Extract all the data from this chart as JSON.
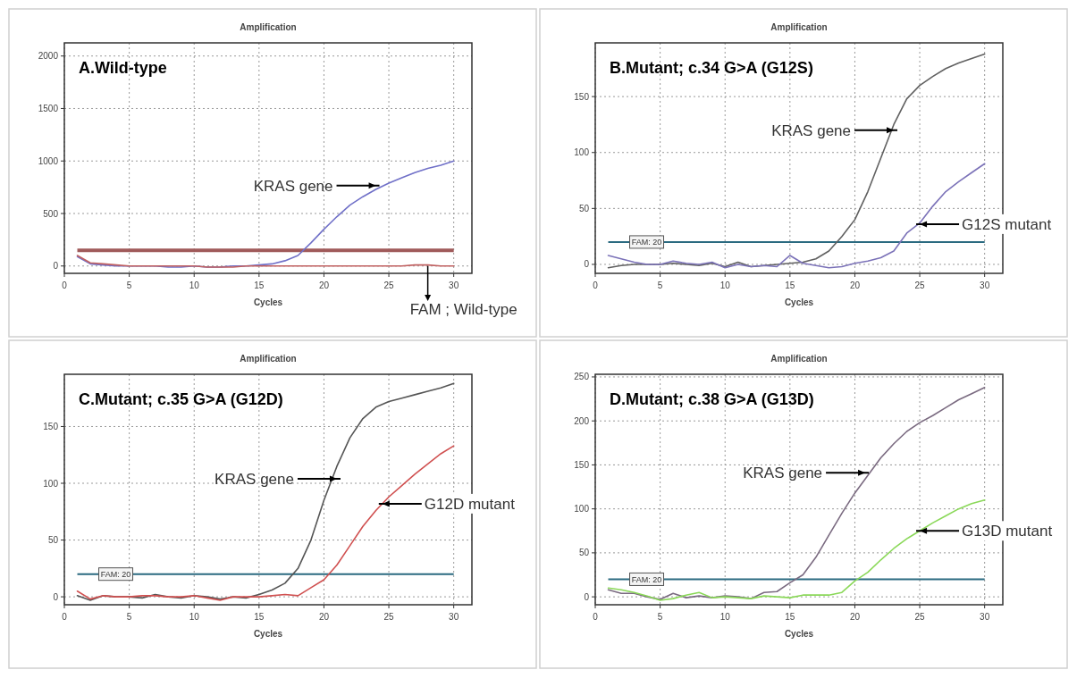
{
  "chart_data": [
    {
      "type": "line",
      "title": "Amplification",
      "subtitle": "A.Wild-type",
      "xlabel": "Cycles",
      "x": [
        1,
        2,
        3,
        4,
        5,
        6,
        7,
        8,
        9,
        10,
        11,
        12,
        13,
        14,
        15,
        16,
        17,
        18,
        19,
        20,
        21,
        22,
        23,
        24,
        25,
        26,
        27,
        28,
        29,
        30
      ],
      "xlim": [
        0,
        31.4
      ],
      "xticks": [
        0,
        5,
        10,
        15,
        20,
        25,
        30
      ],
      "ylim": [
        -70,
        2125
      ],
      "yticks": [
        0,
        500,
        1000,
        1500,
        2000
      ],
      "grid": true,
      "line_style": "solid",
      "series": [
        {
          "color": "#7070c8",
          "values": [
            90,
            20,
            10,
            0,
            0,
            0,
            0,
            -10,
            -10,
            0,
            -10,
            -10,
            0,
            0,
            10,
            20,
            50,
            100,
            220,
            350,
            470,
            580,
            660,
            730,
            790,
            840,
            890,
            930,
            960,
            1000
          ]
        },
        {
          "color": "#c06060",
          "values": [
            100,
            30,
            20,
            10,
            0,
            0,
            0,
            0,
            0,
            0,
            -10,
            -10,
            -10,
            0,
            0,
            0,
            0,
            0,
            0,
            0,
            0,
            0,
            0,
            0,
            0,
            0,
            10,
            10,
            0,
            0
          ]
        }
      ],
      "ref_lines": [
        {
          "axis": "y",
          "value": 150,
          "color": "#a05a5a"
        }
      ],
      "annotations": [
        {
          "text": "KRAS gene",
          "x": 24,
          "y": 765
        },
        {
          "text": "FAM ; Wild-type",
          "x": 28,
          "y": 0
        }
      ]
    },
    {
      "type": "line",
      "title": "Amplification",
      "subtitle": "B.Mutant; c.34 G>A (G12S)",
      "xlabel": "Cycles",
      "x": [
        1,
        2,
        3,
        4,
        5,
        6,
        7,
        8,
        9,
        10,
        11,
        12,
        13,
        14,
        15,
        16,
        17,
        18,
        19,
        20,
        21,
        22,
        23,
        24,
        25,
        26,
        27,
        28,
        29,
        30
      ],
      "xlim": [
        0,
        31.4
      ],
      "xticks": [
        0,
        5,
        10,
        15,
        20,
        25,
        30
      ],
      "ylim": [
        -8,
        198
      ],
      "yticks": [
        0,
        50,
        100,
        150
      ],
      "grid": true,
      "line_style": "solid",
      "series": [
        {
          "color": "#606060",
          "values": [
            -3,
            -1,
            0,
            0,
            0,
            1,
            0,
            -1,
            1,
            -2,
            2,
            -2,
            -1,
            0,
            1,
            2,
            5,
            12,
            25,
            40,
            65,
            95,
            125,
            148,
            160,
            168,
            175,
            180,
            184,
            188
          ]
        },
        {
          "color": "#7b72b8",
          "values": [
            8,
            5,
            2,
            0,
            0,
            3,
            1,
            0,
            2,
            -3,
            0,
            -2,
            -1,
            -2,
            8,
            1,
            -1,
            -3,
            -2,
            1,
            3,
            6,
            12,
            28,
            37,
            52,
            65,
            74,
            82,
            90
          ]
        }
      ],
      "ref_lines": [
        {
          "axis": "y",
          "value": 20,
          "label": "FAM: 20",
          "color": "#2a6a80"
        }
      ],
      "annotations": [
        {
          "text": "KRAS gene",
          "x": 23,
          "y": 120
        },
        {
          "text": "G12S mutant",
          "x": 25,
          "y": 36
        }
      ]
    },
    {
      "type": "line",
      "title": "Amplification",
      "subtitle": "C.Mutant; c.35 G>A (G12D)",
      "xlabel": "Cycles",
      "x": [
        1,
        2,
        3,
        4,
        5,
        6,
        7,
        8,
        9,
        10,
        11,
        12,
        13,
        14,
        15,
        16,
        17,
        18,
        19,
        20,
        21,
        22,
        23,
        24,
        25,
        26,
        27,
        28,
        29,
        30
      ],
      "xlim": [
        0,
        31.4
      ],
      "xticks": [
        0,
        5,
        10,
        15,
        20,
        25,
        30
      ],
      "ylim": [
        -7,
        196
      ],
      "yticks": [
        0,
        50,
        100,
        150
      ],
      "grid": true,
      "line_style": "solid",
      "series": [
        {
          "color": "#555555",
          "values": [
            1,
            -3,
            1,
            0,
            0,
            -1,
            2,
            0,
            -1,
            1,
            0,
            -2,
            0,
            -1,
            2,
            6,
            12,
            25,
            50,
            85,
            115,
            140,
            157,
            167,
            172,
            175,
            178,
            181,
            184,
            188
          ]
        },
        {
          "color": "#d05050",
          "values": [
            5,
            -2,
            1,
            0,
            0,
            1,
            1,
            0,
            0,
            1,
            -1,
            -3,
            0,
            0,
            0,
            1,
            2,
            1,
            8,
            15,
            28,
            45,
            62,
            76,
            88,
            98,
            108,
            117,
            126,
            133
          ]
        }
      ],
      "ref_lines": [
        {
          "axis": "y",
          "value": 20,
          "label": "FAM: 20",
          "color": "#2a6a80"
        }
      ],
      "annotations": [
        {
          "text": "KRAS gene",
          "x": 21,
          "y": 104
        },
        {
          "text": "G12D mutant",
          "x": 24.5,
          "y": 82
        }
      ]
    },
    {
      "type": "line",
      "title": "Amplification",
      "subtitle": "D.Mutant; c.38 G>A (G13D)",
      "xlabel": "Cycles",
      "x": [
        1,
        2,
        3,
        4,
        5,
        6,
        7,
        8,
        9,
        10,
        11,
        12,
        13,
        14,
        15,
        16,
        17,
        18,
        19,
        20,
        21,
        22,
        23,
        24,
        25,
        26,
        27,
        28,
        29,
        30
      ],
      "xlim": [
        0,
        31.4
      ],
      "xticks": [
        0,
        5,
        10,
        15,
        20,
        25,
        30
      ],
      "ylim": [
        -9,
        253
      ],
      "yticks": [
        0,
        50,
        100,
        150,
        200,
        250
      ],
      "grid": true,
      "line_style": "solid",
      "series": [
        {
          "color": "#7a6a80",
          "values": [
            8,
            4,
            4,
            0,
            -3,
            4,
            -1,
            1,
            -1,
            1,
            0,
            -2,
            5,
            6,
            16,
            25,
            45,
            70,
            95,
            118,
            138,
            158,
            174,
            188,
            198,
            206,
            215,
            224,
            231,
            238
          ]
        },
        {
          "color": "#8ad858",
          "values": [
            10,
            8,
            5,
            1,
            -4,
            -2,
            2,
            5,
            -1,
            0,
            -1,
            -2,
            1,
            0,
            -1,
            2,
            2,
            2,
            5,
            18,
            28,
            42,
            55,
            66,
            75,
            84,
            92,
            100,
            106,
            110
          ]
        }
      ],
      "ref_lines": [
        {
          "axis": "y",
          "value": 20,
          "label": "FAM: 20",
          "color": "#2a6a80"
        }
      ],
      "annotations": [
        {
          "text": "KRAS gene",
          "x": 20.8,
          "y": 141
        },
        {
          "text": "G13D mutant",
          "x": 25,
          "y": 75
        }
      ]
    }
  ]
}
